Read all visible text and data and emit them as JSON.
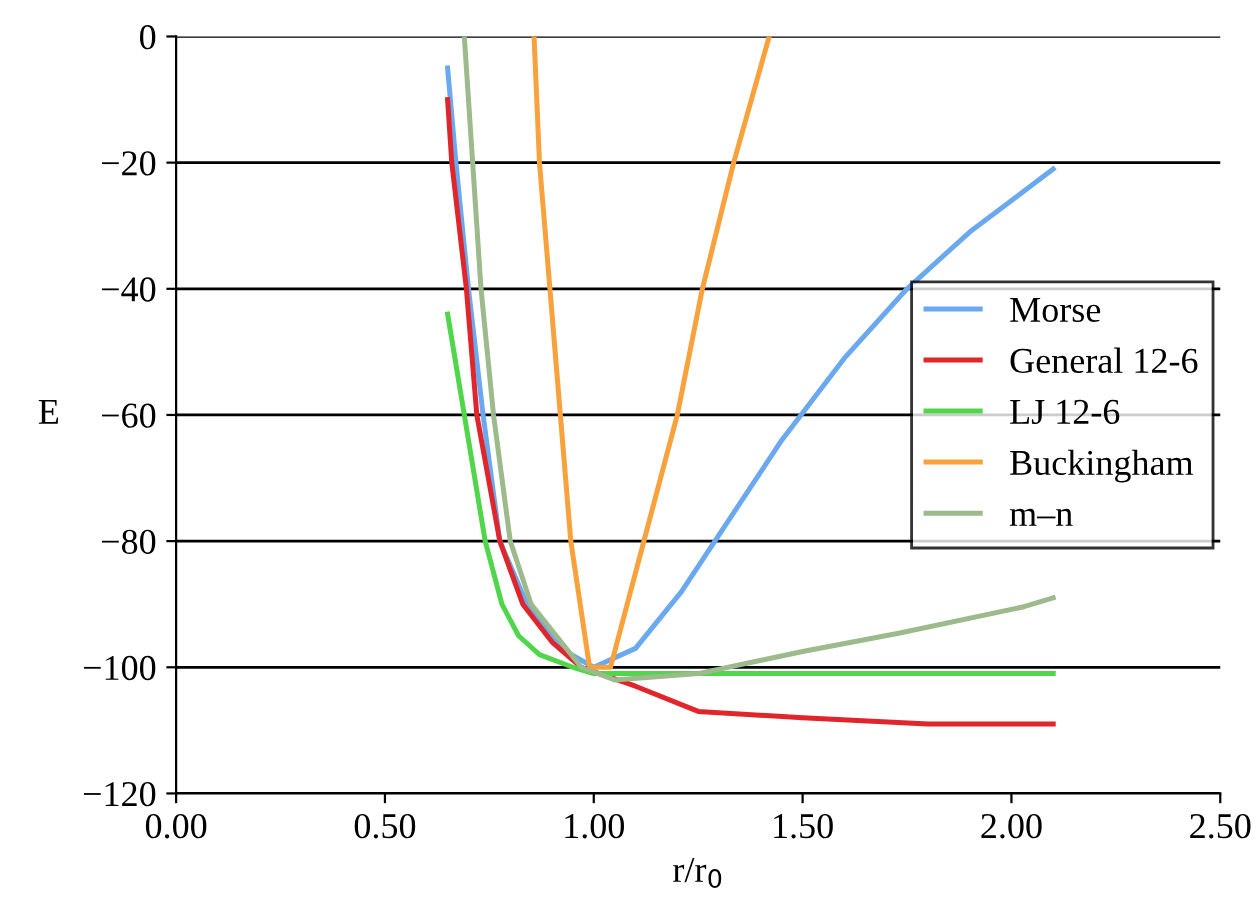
{
  "chart_data": {
    "type": "line",
    "xlabel": "r/r$_{0}$",
    "ylabel": "E",
    "xlim": [
      0,
      2.5
    ],
    "ylim": [
      -120,
      0
    ],
    "xticks": [
      {
        "value": 0,
        "label": "0.00"
      },
      {
        "value": 0.5,
        "label": "0.50"
      },
      {
        "value": 1,
        "label": "1.00"
      },
      {
        "value": 1.5,
        "label": "1.50"
      },
      {
        "value": 2,
        "label": "2.00"
      },
      {
        "value": 2.5,
        "label": "2.50"
      }
    ],
    "yticks": [
      {
        "value": -120,
        "label": "−120"
      },
      {
        "value": -100,
        "label": "−100"
      },
      {
        "value": -80,
        "label": "−80"
      },
      {
        "value": -60,
        "label": "−60"
      },
      {
        "value": -40,
        "label": "−40"
      },
      {
        "value": -20,
        "label": "−20"
      },
      0
    ],
    "grid": "y",
    "legend": "right",
    "marker": "none",
    "line_style": "solid",
    "series": [
      {
        "name": "Morse",
        "color": "#6aa9f0",
        "x": [
          0.65,
          0.67,
          0.7,
          0.735,
          0.775,
          0.84,
          0.92,
          1.0,
          1.1,
          1.21,
          1.33,
          1.45,
          1.6,
          1.75,
          1.9,
          2.1
        ],
        "values": [
          -5,
          -20,
          -40,
          -60,
          -80,
          -90,
          -97,
          -100,
          -97,
          -88,
          -76,
          -64,
          -51,
          -40,
          -31,
          -21
        ]
      },
      {
        "name": "General 12-6",
        "color": "#e0252b",
        "x": [
          0.65,
          0.66,
          0.695,
          0.72,
          0.775,
          0.83,
          0.9,
          0.97,
          1.1,
          1.25,
          1.5,
          1.8,
          2.1
        ],
        "values": [
          -10,
          -20,
          -40,
          -60,
          -80,
          -90,
          -96,
          -100,
          -103,
          -107,
          -108,
          -109,
          -109
        ]
      },
      {
        "name": "LJ 12-6",
        "color": "#4fd64a",
        "x": [
          0.65,
          0.69,
          0.74,
          0.78,
          0.82,
          0.87,
          0.95,
          1.0,
          1.5,
          2.1
        ],
        "values": [
          -44,
          -60,
          -80,
          -90,
          -95,
          -98,
          -100,
          -101,
          -101,
          -101
        ]
      },
      {
        "name": "Buckingham",
        "color": "#f9a13c",
        "x": [
          0.857,
          0.87,
          0.895,
          0.92,
          0.945,
          0.99,
          1.04,
          1.12,
          1.2,
          1.26,
          1.335,
          1.42
        ],
        "values": [
          0,
          -20,
          -40,
          -60,
          -80,
          -100,
          -100,
          -80,
          -60,
          -40,
          -20,
          0
        ]
      },
      {
        "name": "m–n",
        "color": "#9cba8c",
        "x": [
          0.69,
          0.71,
          0.73,
          0.76,
          0.8,
          0.85,
          0.97,
          1.05,
          1.25,
          1.5,
          1.73,
          2.03,
          2.1
        ],
        "values": [
          0,
          -20,
          -40,
          -60,
          -80,
          -90,
          -100,
          -102,
          -101,
          -97.5,
          -94.6,
          -90.4,
          -89
        ]
      }
    ]
  }
}
